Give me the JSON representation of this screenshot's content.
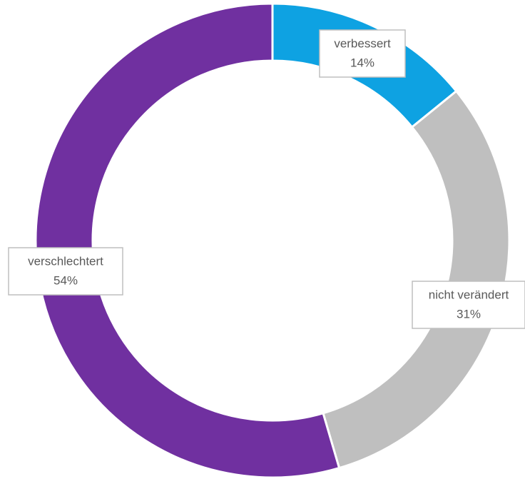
{
  "chart_data": {
    "type": "donut",
    "categories": [
      "verbessert",
      "nicht verändert",
      "verschlechtert"
    ],
    "values": [
      14,
      31,
      54
    ],
    "value_labels": [
      "14%",
      "31%",
      "54%"
    ],
    "colors": [
      "#0ea2e2",
      "#bfbfbf",
      "#7030a0"
    ]
  }
}
